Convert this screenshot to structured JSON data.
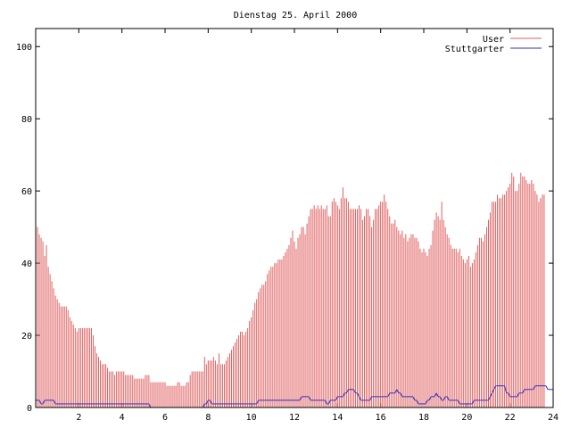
{
  "chart_data": {
    "type": "bar",
    "title": "Dienstag 25. April 2000",
    "xlabel": "",
    "ylabel": "",
    "xlim": [
      0,
      24
    ],
    "ylim": [
      0,
      105
    ],
    "x_ticks": [
      2,
      4,
      6,
      8,
      10,
      12,
      14,
      16,
      18,
      20,
      22,
      24
    ],
    "y_ticks": [
      0,
      20,
      40,
      60,
      80,
      100
    ],
    "grid": false,
    "legend_position": "top-right",
    "sample_interval_hours": 0.0833333,
    "series": [
      {
        "name": "User",
        "style": "impulses",
        "color": "#e06060",
        "values": [
          49,
          50,
          48,
          47,
          46,
          42,
          45,
          39,
          37,
          35,
          33,
          31,
          30,
          29,
          28,
          28,
          28,
          28,
          27,
          25,
          24,
          23,
          22,
          21,
          22,
          22,
          22,
          22,
          22,
          22,
          22,
          22,
          20,
          17,
          15,
          14,
          13,
          12,
          12,
          12,
          11,
          10,
          10,
          10,
          9,
          10,
          10,
          10,
          10,
          10,
          9,
          9,
          9,
          9,
          9,
          8,
          8,
          8,
          8,
          8,
          8,
          9,
          9,
          9,
          7,
          7,
          7,
          7,
          7,
          7,
          7,
          7,
          7,
          6,
          6,
          6,
          6,
          6,
          6,
          7,
          7,
          6,
          6,
          6,
          7,
          7,
          9,
          10,
          10,
          10,
          10,
          10,
          10,
          10,
          14,
          12,
          13,
          13,
          13,
          14,
          13,
          12,
          15,
          12,
          12,
          12,
          13,
          14,
          15,
          16,
          17,
          18,
          19,
          20,
          21,
          21,
          20,
          21,
          22,
          24,
          25,
          27,
          29,
          30,
          32,
          33,
          34,
          34,
          35,
          37,
          38,
          39,
          39,
          40,
          40,
          41,
          41,
          41,
          42,
          43,
          44,
          45,
          47,
          49,
          46,
          44,
          47,
          48,
          50,
          50,
          48,
          51,
          53,
          55,
          55,
          56,
          55,
          56,
          55,
          56,
          55,
          55,
          56,
          53,
          53,
          57,
          58,
          57,
          56,
          55,
          58,
          61,
          58,
          58,
          57,
          55,
          55,
          55,
          55,
          55,
          56,
          55,
          52,
          53,
          55,
          55,
          53,
          50,
          52,
          55,
          55,
          56,
          57,
          57,
          59,
          57,
          55,
          53,
          51,
          51,
          52,
          50,
          49,
          48,
          49,
          47,
          48,
          46,
          47,
          48,
          48,
          47,
          47,
          46,
          44,
          43,
          44,
          43,
          42,
          44,
          45,
          49,
          52,
          54,
          53,
          52,
          57,
          52,
          50,
          48,
          47,
          45,
          44,
          44,
          44,
          43,
          44,
          42,
          41,
          40,
          41,
          42,
          39,
          40,
          41,
          43,
          45,
          47,
          47,
          46,
          48,
          50,
          52,
          54,
          57,
          57,
          57,
          59,
          58,
          58,
          59,
          59,
          60,
          61,
          62,
          65,
          64,
          60,
          60,
          62,
          65,
          64,
          64,
          63,
          62,
          62,
          63,
          62,
          60,
          59,
          57,
          58,
          59,
          59
        ]
      },
      {
        "name": "Stuttgarter",
        "style": "line",
        "color": "#3030c0",
        "values": [
          2,
          2,
          2,
          1,
          1,
          2,
          2,
          2,
          2,
          2,
          2,
          1,
          1,
          1,
          1,
          1,
          1,
          1,
          1,
          1,
          1,
          1,
          1,
          1,
          1,
          1,
          1,
          1,
          1,
          1,
          1,
          1,
          1,
          1,
          1,
          1,
          1,
          1,
          1,
          1,
          1,
          1,
          1,
          1,
          1,
          1,
          1,
          1,
          1,
          1,
          1,
          1,
          1,
          1,
          1,
          1,
          1,
          1,
          1,
          1,
          1,
          1,
          1,
          1,
          0,
          0,
          0,
          0,
          0,
          0,
          0,
          0,
          0,
          0,
          0,
          0,
          0,
          0,
          0,
          0,
          0,
          0,
          0,
          0,
          0,
          0,
          0,
          0,
          0,
          0,
          0,
          0,
          0,
          0,
          1,
          1,
          2,
          2,
          1,
          1,
          1,
          1,
          1,
          1,
          1,
          1,
          1,
          1,
          1,
          1,
          1,
          1,
          1,
          1,
          1,
          1,
          1,
          1,
          1,
          1,
          1,
          1,
          1,
          1,
          2,
          2,
          2,
          2,
          2,
          2,
          2,
          2,
          2,
          2,
          2,
          2,
          2,
          2,
          2,
          2,
          2,
          2,
          2,
          2,
          2,
          2,
          2,
          2,
          3,
          3,
          3,
          3,
          3,
          2,
          2,
          2,
          2,
          2,
          2,
          2,
          2,
          2,
          1,
          1,
          2,
          2,
          2,
          2,
          3,
          3,
          3,
          3,
          4,
          4,
          5,
          5,
          5,
          5,
          4,
          4,
          3,
          2,
          2,
          2,
          2,
          2,
          2,
          3,
          3,
          3,
          3,
          3,
          3,
          3,
          3,
          3,
          3,
          4,
          4,
          4,
          4,
          5,
          4,
          4,
          3,
          3,
          3,
          3,
          3,
          3,
          3,
          2,
          2,
          1,
          1,
          1,
          1,
          1,
          2,
          2,
          3,
          3,
          3,
          4,
          3,
          3,
          2,
          2,
          3,
          3,
          2,
          2,
          2,
          2,
          2,
          2,
          1,
          1,
          1,
          1,
          1,
          1,
          1,
          1,
          2,
          2,
          2,
          2,
          2,
          2,
          2,
          2,
          2,
          3,
          4,
          5,
          6,
          6,
          6,
          6,
          6,
          6,
          4,
          4,
          3,
          3,
          3,
          3,
          3,
          4,
          4,
          4,
          5,
          5,
          5,
          5,
          5,
          5,
          6,
          6,
          6,
          6,
          6,
          6,
          6,
          5,
          5,
          5,
          5
        ]
      }
    ]
  }
}
